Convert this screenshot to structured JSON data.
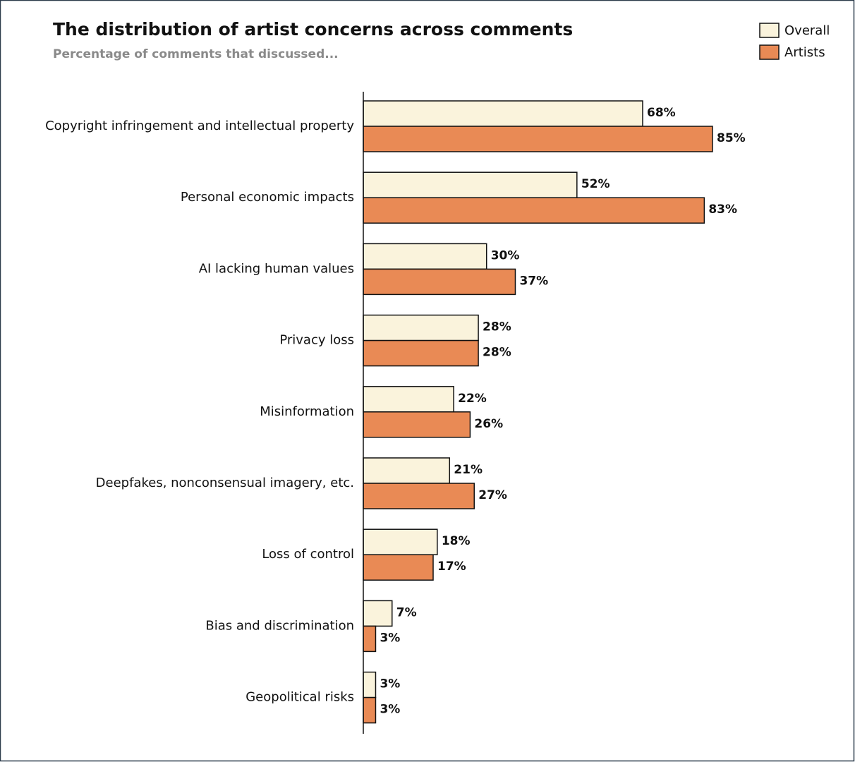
{
  "chart_data": {
    "type": "barh",
    "title": "The distribution of artist concerns across comments",
    "subtitle": "Percentage of comments that discussed...",
    "categories": [
      "Copyright infringement and intellectual property",
      "Personal economic impacts",
      "AI lacking human values",
      "Privacy loss",
      "Misinformation",
      "Deepfakes, nonconsensual imagery, etc.",
      "Loss of control",
      "Bias and discrimination",
      "Geopolitical risks"
    ],
    "series": [
      {
        "name": "Overall",
        "color": "#faf3dc",
        "values": [
          68,
          52,
          30,
          28,
          22,
          21,
          18,
          7,
          3
        ],
        "value_labels": [
          "68%",
          "52%",
          "30%",
          "28%",
          "22%",
          "21%",
          "18%",
          "7%",
          "3%"
        ]
      },
      {
        "name": "Artists",
        "color": "#e98a55",
        "values": [
          85,
          83,
          37,
          28,
          26,
          27,
          17,
          3,
          3
        ],
        "value_labels": [
          "85%",
          "83%",
          "37%",
          "28%",
          "26%",
          "27%",
          "17%",
          "3%",
          "3%"
        ]
      }
    ],
    "xlim": [
      0,
      85
    ],
    "legend": "top-right"
  }
}
